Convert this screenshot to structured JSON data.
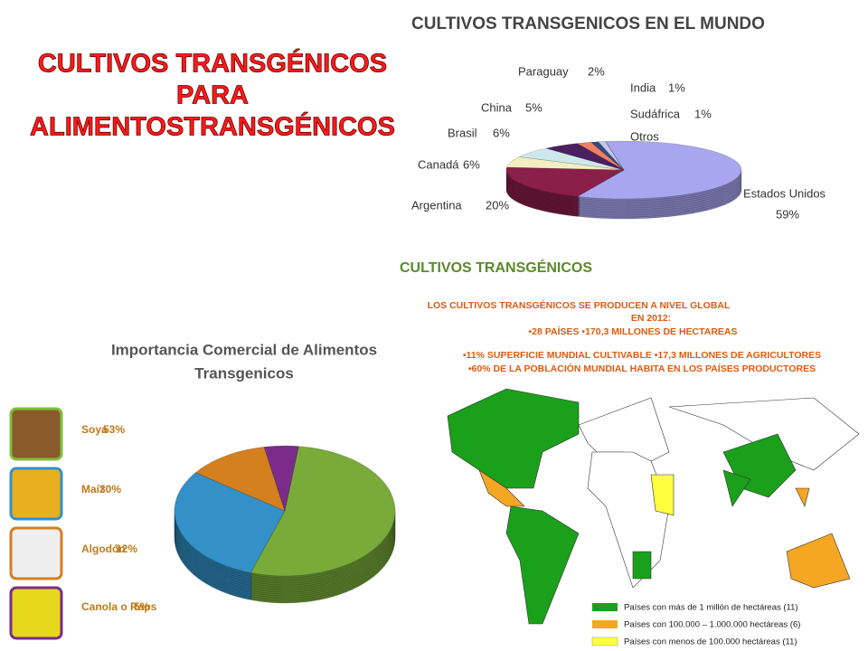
{
  "title": [
    "CULTIVOS TRANSGÉNICOS",
    "PARA",
    "ALIMENTOSTRANSGÉNICOS"
  ],
  "chart_data": [
    {
      "type": "pie",
      "title": "CULTIVOS TRANSGENICOS EN EL MUNDO",
      "categories": [
        "Estados Unidos",
        "Argentina",
        "Canadá",
        "Brasil",
        "China",
        "Paraguay",
        "India",
        "Sudáfrica",
        "Otros"
      ],
      "values": [
        59,
        20,
        6,
        6,
        5,
        2,
        1,
        1,
        0
      ],
      "value_labels": [
        "59%",
        "20%",
        "6%",
        "6%",
        "5%",
        "2%",
        "1%",
        "1%",
        ""
      ],
      "colors": [
        "#a9a6f0",
        "#8a1f4a",
        "#f3efc0",
        "#cfe8ec",
        "#4a2060",
        "#f07e63",
        "#2e4f8a",
        "#c7c7e6",
        "#9fd4e6"
      ]
    },
    {
      "type": "pie",
      "title": [
        "Importancia Comercial de Alimentos",
        "Transgenicos"
      ],
      "categories": [
        "Soya",
        "Maíz",
        "Algodón",
        "Canola o Raps"
      ],
      "values": [
        53,
        30,
        12,
        5
      ],
      "value_labels": [
        "53%",
        "30%",
        "12%",
        "5%"
      ],
      "colors": [
        "#7aab3a",
        "#3391c7",
        "#d4801f",
        "#7b2c8a"
      ]
    }
  ],
  "map": {
    "title": "CULTIVOS TRANSGÉNICOS",
    "lines": [
      "LOS CULTIVOS TRANSGÉNICOS SE PRODUCEN A NIVEL GLOBAL",
      "EN 2012:",
      "•28 PAÍSES     •170,3 MILLONES DE HECTAREAS",
      "•11% SUPERFICIE MUNDIAL CULTIVABLE     •17,3 MILLONES DE AGRICULTORES",
      "•60% DE LA POBLACIÓN MUNDIAL HABITA EN LOS PAÍSES PRODUCTORES"
    ],
    "legend": [
      "Países con más de 1 millón de hectáreas (11)",
      "Países con 100.000 – 1.000.000 hectáreas (6)",
      "Países con menos de 100.000 hectáreas (11)"
    ]
  }
}
